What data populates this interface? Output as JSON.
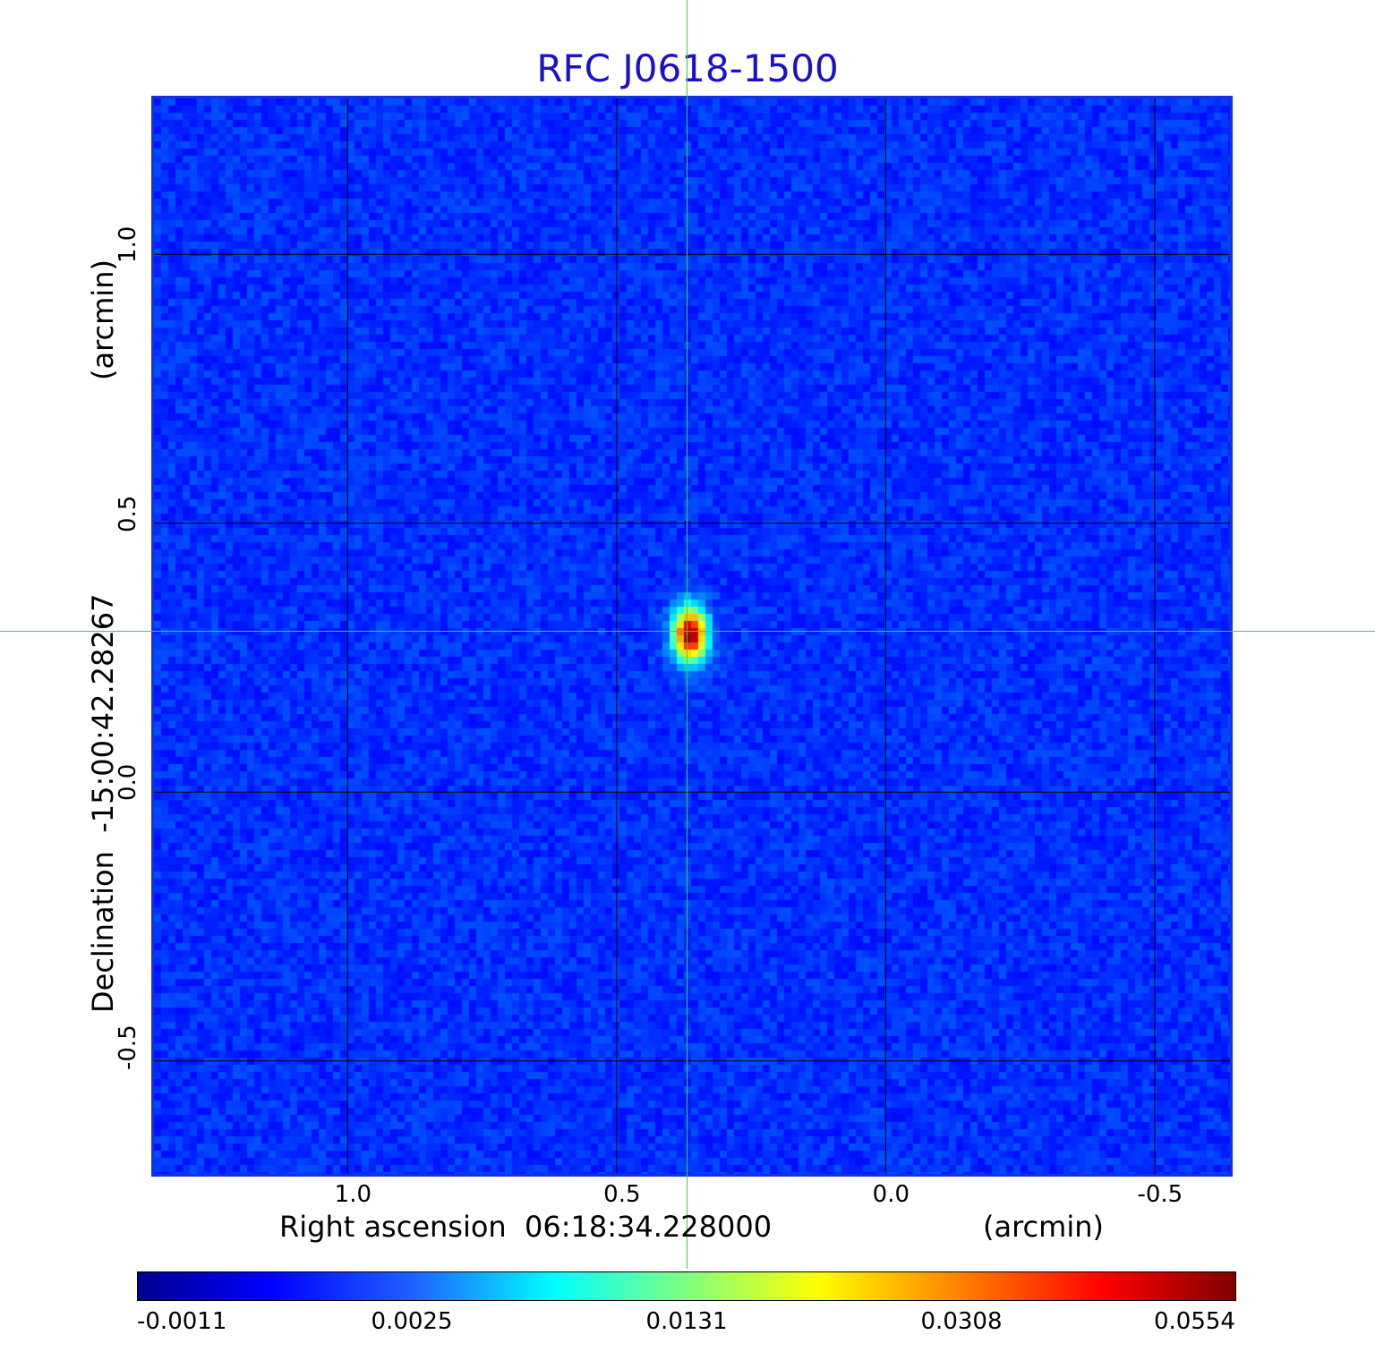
{
  "chart_data": {
    "type": "heatmap",
    "title": "RFC J0618-1500",
    "xlabel": "Right ascension  06:18:34.228000",
    "xunit": "(arcmin)",
    "ylabel": "Declination  -15:00:42.28267",
    "yunit": "(arcmin)",
    "x_ticks": [
      "1.0",
      "0.5",
      "0.0",
      "-0.5"
    ],
    "x_tick_values": [
      1.0,
      0.5,
      0.0,
      -0.5
    ],
    "y_ticks": [
      "1.0",
      "0.5",
      "0.0",
      "-0.5"
    ],
    "y_tick_values": [
      1.0,
      0.5,
      0.0,
      -0.5
    ],
    "xlim": [
      1.36,
      -0.64
    ],
    "ylim": [
      -0.71,
      1.29
    ],
    "grid": true,
    "source_peak": {
      "x": 0.37,
      "y": 0.3,
      "value": 0.0554
    },
    "colorbar": {
      "ticks": [
        "-0.0011",
        "0.0025",
        "0.0131",
        "0.0308",
        "0.0554"
      ],
      "colormap": "jet",
      "min": -0.0011,
      "max": 0.0554
    },
    "crosshair_color": "#3ad13a",
    "title_color": "#1a10cc"
  }
}
